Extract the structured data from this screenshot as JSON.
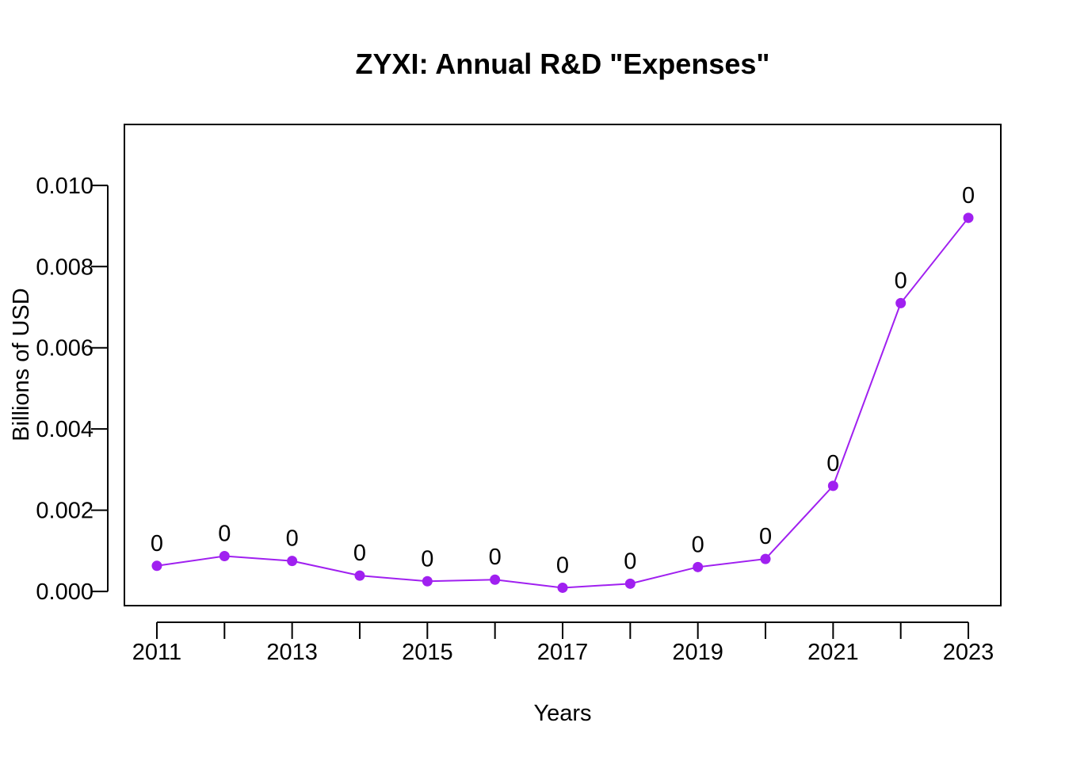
{
  "chart_data": {
    "type": "line",
    "title": "ZYXI: Annual R&D \"Expenses\"",
    "xlabel": "Years",
    "ylabel": "Billions of USD",
    "x": [
      2011,
      2012,
      2013,
      2014,
      2015,
      2016,
      2017,
      2018,
      2019,
      2020,
      2021,
      2022,
      2023
    ],
    "x_tick_labels": [
      "2011",
      "2013",
      "2015",
      "2017",
      "2019",
      "2021",
      "2023"
    ],
    "x_tick_values": [
      2011,
      2013,
      2015,
      2017,
      2019,
      2021,
      2023
    ],
    "y_tick_labels": [
      "0.000",
      "0.002",
      "0.004",
      "0.006",
      "0.008",
      "0.010"
    ],
    "y_tick_values": [
      0.0,
      0.002,
      0.004,
      0.006,
      0.008,
      0.01
    ],
    "xlim": [
      2010.52,
      2023.48
    ],
    "ylim": [
      -0.00035,
      0.0115
    ],
    "grid": false,
    "series": [
      {
        "values": [
          0.00063,
          0.00087,
          0.00075,
          0.00039,
          0.00025,
          0.00029,
          9e-05,
          0.00019,
          0.0006,
          0.0008,
          0.0026,
          0.0071,
          0.0092
        ],
        "point_labels": [
          "0",
          "0",
          "0",
          "0",
          "0",
          "0",
          "0",
          "0",
          "0",
          "0",
          "0",
          "0",
          "0"
        ],
        "color": "#A020F0"
      }
    ]
  }
}
